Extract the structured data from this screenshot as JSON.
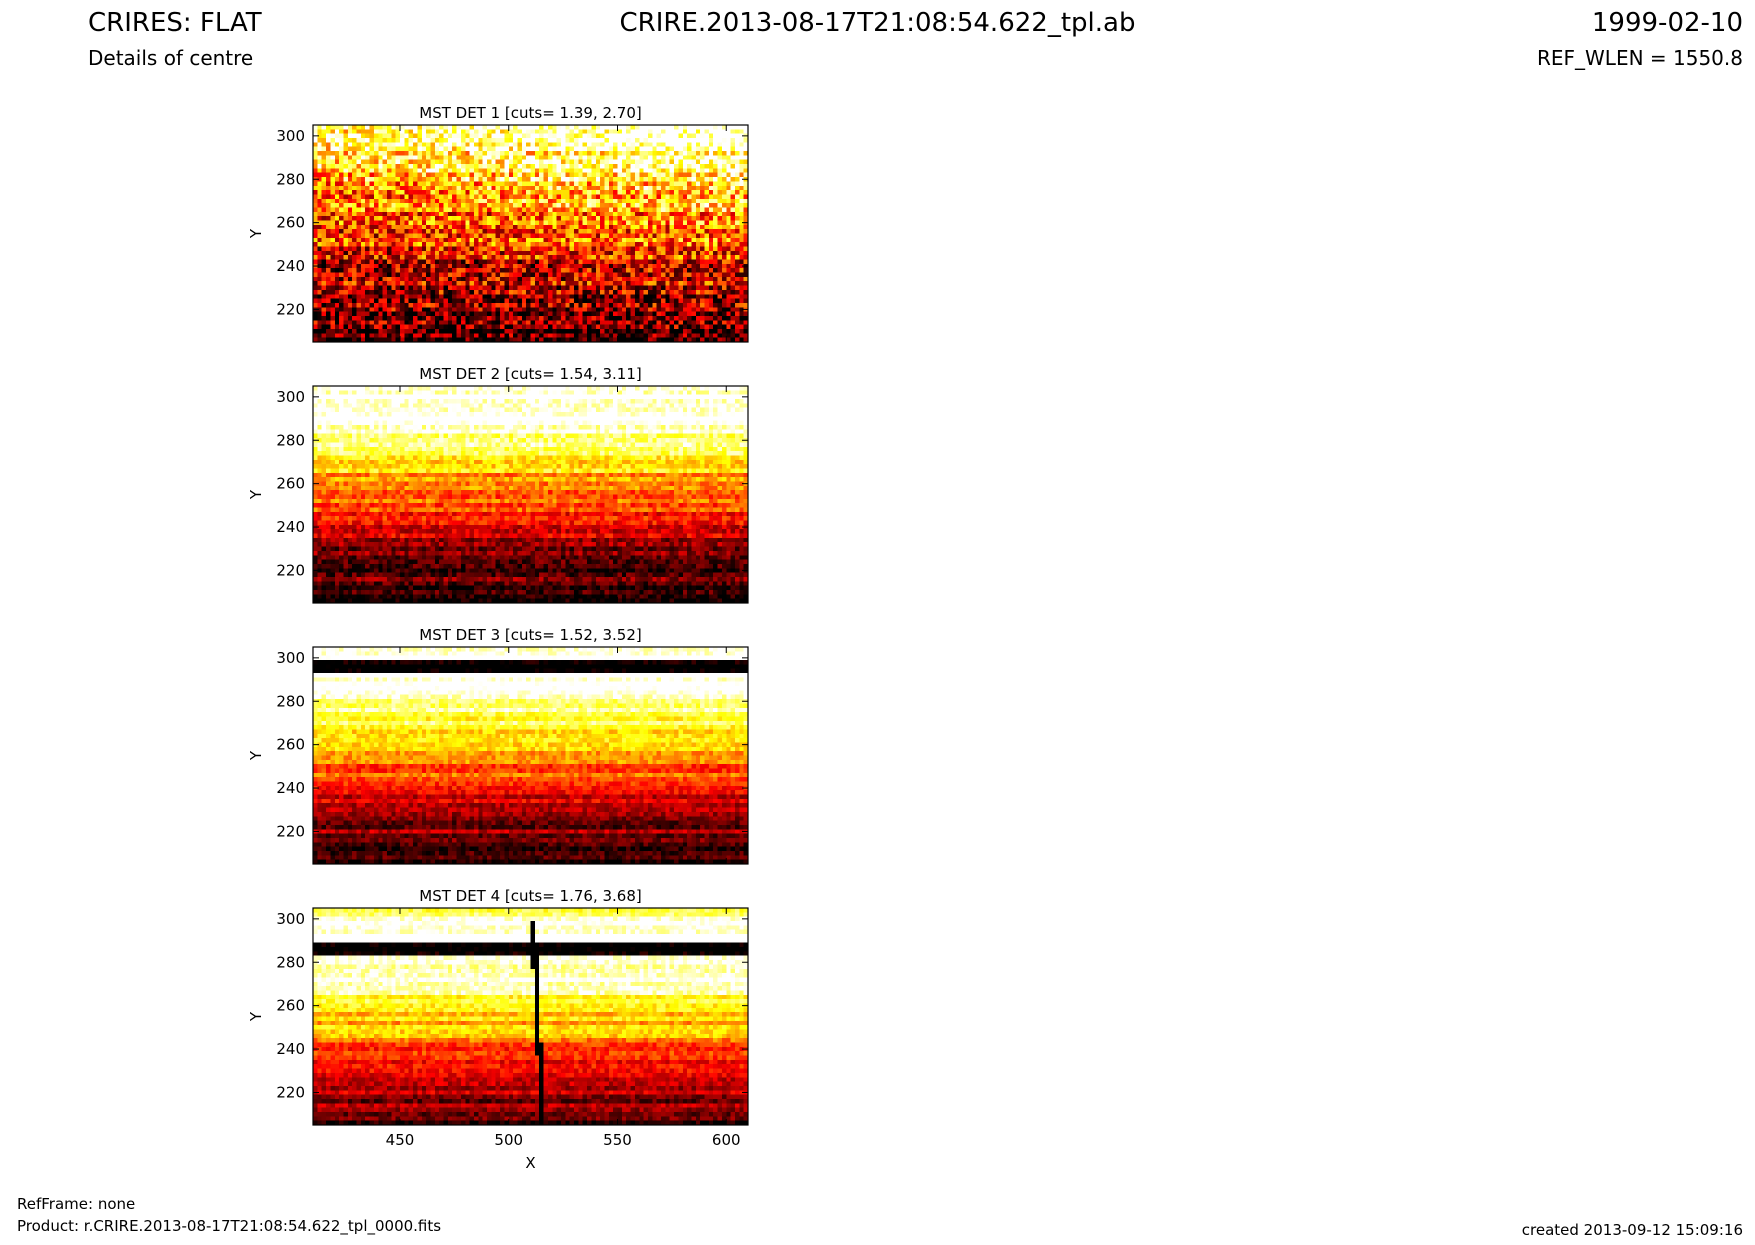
{
  "header": {
    "title_left": "CRIRES: FLAT",
    "subtitle_left": "Details of centre",
    "title_center": "CRIRE.2013-08-17T21:08:54.622_tpl.ab",
    "title_right": "1999-02-10",
    "subtitle_right": "REF_WLEN = 1550.8"
  },
  "footer": {
    "refframe": "RefFrame: none",
    "product": "Product: r.CRIRE.2013-08-17T21:08:54.622_tpl_0000.fits",
    "created": "created 2013-09-12 15:09:16"
  },
  "chart_data": [
    {
      "type": "heatmap",
      "title": "MST DET 1 [cuts= 1.39, 2.70]",
      "ylabel": "Y",
      "xlabel": "",
      "xlim": [
        410,
        610
      ],
      "ylim": [
        205,
        305
      ],
      "yticks": [
        220,
        240,
        260,
        280,
        300
      ],
      "xticks": [],
      "colormap": "hot",
      "cuts": [
        1.39,
        2.7
      ],
      "grid": false
    },
    {
      "type": "heatmap",
      "title": "MST DET 2 [cuts= 1.54, 3.11]",
      "ylabel": "Y",
      "xlabel": "",
      "xlim": [
        410,
        610
      ],
      "ylim": [
        205,
        305
      ],
      "yticks": [
        220,
        240,
        260,
        280,
        300
      ],
      "xticks": [],
      "colormap": "hot",
      "cuts": [
        1.54,
        3.11
      ],
      "grid": false
    },
    {
      "type": "heatmap",
      "title": "MST DET 3 [cuts= 1.52, 3.52]",
      "ylabel": "Y",
      "xlabel": "",
      "xlim": [
        410,
        610
      ],
      "ylim": [
        205,
        305
      ],
      "yticks": [
        220,
        240,
        260,
        280,
        300
      ],
      "xticks": [],
      "colormap": "hot",
      "cuts": [
        1.52,
        3.52
      ],
      "grid": false
    },
    {
      "type": "heatmap",
      "title": "MST DET 4 [cuts= 1.76, 3.68]",
      "ylabel": "Y",
      "xlabel": "X",
      "xlim": [
        410,
        610
      ],
      "ylim": [
        205,
        305
      ],
      "yticks": [
        220,
        240,
        260,
        280,
        300
      ],
      "xticks": [
        450,
        500,
        550,
        600
      ],
      "colormap": "hot",
      "cuts": [
        1.76,
        3.68
      ],
      "grid": false
    }
  ]
}
